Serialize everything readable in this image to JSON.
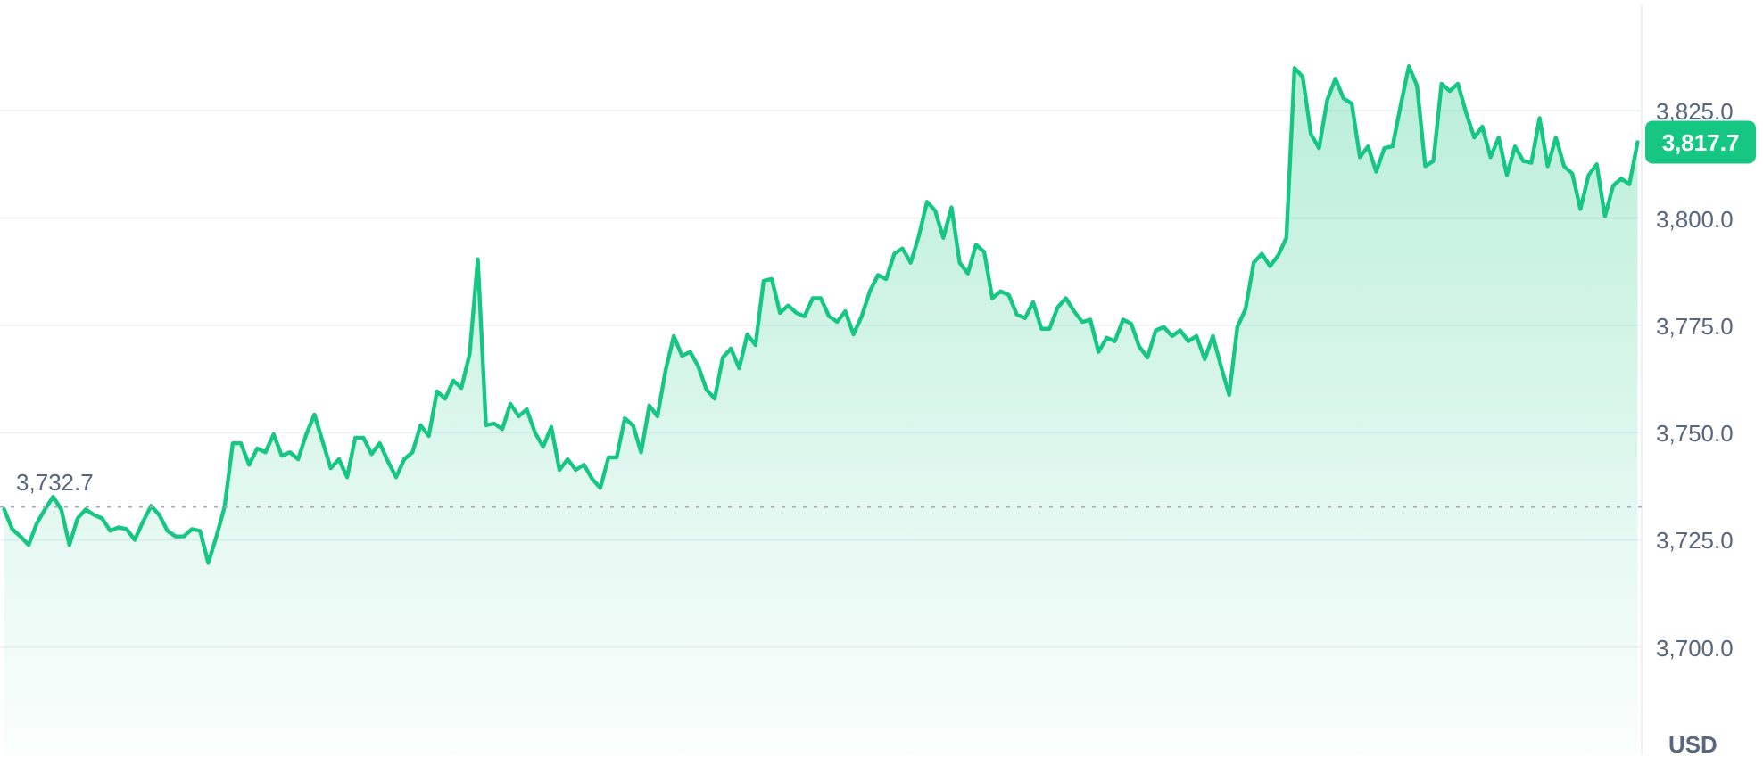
{
  "chart_data": {
    "type": "area",
    "categories": [
      null,
      null,
      null,
      null,
      null,
      null,
      null,
      null,
      null,
      null,
      null,
      null,
      null,
      null,
      null,
      null,
      null,
      null,
      null,
      null,
      null,
      null,
      null,
      null,
      null,
      null,
      null,
      null,
      null,
      null,
      null,
      null,
      null,
      null,
      null,
      null,
      null,
      null,
      null,
      null,
      null,
      null,
      null,
      null,
      null,
      null,
      null,
      null,
      null,
      null,
      null,
      null,
      null,
      null,
      null,
      null,
      null,
      null,
      null,
      null,
      null,
      null,
      null,
      null,
      null,
      null,
      null,
      null,
      null,
      null,
      null,
      null,
      null,
      null,
      null,
      null,
      null,
      null,
      null,
      null,
      null,
      null,
      null,
      null,
      null,
      null,
      null,
      null,
      null,
      null,
      null,
      null,
      null,
      null,
      null,
      null,
      null,
      null,
      null,
      null,
      null,
      null,
      null,
      null,
      null,
      null,
      null,
      null,
      null,
      null,
      null,
      null,
      null,
      null,
      null,
      null,
      null,
      null,
      null,
      null,
      null,
      null,
      null,
      null,
      null,
      null,
      null,
      null,
      null,
      null,
      null,
      null,
      null,
      null,
      null,
      null,
      null,
      null,
      null,
      null,
      null,
      null,
      null,
      null,
      null,
      null,
      null,
      null,
      null,
      null,
      null,
      null,
      null,
      null,
      null,
      null,
      null,
      null,
      null,
      null,
      null,
      null,
      null,
      null,
      null,
      null,
      null,
      null,
      null,
      null,
      null,
      null,
      null,
      null,
      null,
      null,
      null,
      null,
      null,
      null,
      null,
      null,
      null,
      null,
      null,
      null,
      null,
      null,
      null,
      null,
      null,
      null,
      null,
      null,
      null,
      null,
      null,
      null,
      null,
      null,
      null
    ],
    "series": [
      {
        "color": "#16c784",
        "values": [
          3732.1,
          3727.5,
          3725.8,
          3723.8,
          3728.8,
          3732.1,
          3735,
          3732.1,
          3723.8,
          3730,
          3732.1,
          3730.8,
          3730,
          3727.1,
          3727.9,
          3727.5,
          3725,
          3729.2,
          3732.9,
          3730.8,
          3727.1,
          3725.8,
          3725.8,
          3727.5,
          3727.1,
          3719.6,
          3725.8,
          3732.7,
          3747.5,
          3747.5,
          3742.5,
          3746.3,
          3745.4,
          3749.6,
          3744.6,
          3745.4,
          3743.8,
          3749.6,
          3754.2,
          3747.9,
          3741.7,
          3743.8,
          3739.6,
          3748.8,
          3748.8,
          3745,
          3747.5,
          3743.3,
          3739.6,
          3743.8,
          3745.4,
          3751.7,
          3749.2,
          3759.6,
          3757.9,
          3762.1,
          3760.4,
          3768.3,
          3790.4,
          3751.7,
          3752.1,
          3750.8,
          3756.7,
          3753.8,
          3755.4,
          3750,
          3746.7,
          3751.3,
          3741.3,
          3743.8,
          3741.3,
          3742.5,
          3739.2,
          3737.1,
          3744.2,
          3744.2,
          3753.3,
          3751.7,
          3745.4,
          3756.3,
          3753.8,
          3764.6,
          3772.5,
          3767.9,
          3768.8,
          3765.4,
          3760,
          3757.9,
          3767.5,
          3769.6,
          3765,
          3772.9,
          3770.4,
          3785.4,
          3785.8,
          3777.9,
          3779.6,
          3777.9,
          3777.1,
          3781.3,
          3781.3,
          3777.1,
          3775.8,
          3778.3,
          3772.9,
          3777.1,
          3782.9,
          3786.7,
          3785.8,
          3791.7,
          3792.9,
          3789.6,
          3795.8,
          3803.8,
          3801.7,
          3795.4,
          3802.5,
          3789.6,
          3787.1,
          3793.8,
          3792.1,
          3781.3,
          3782.9,
          3782.1,
          3777.5,
          3776.7,
          3780.4,
          3774.2,
          3774.2,
          3779.2,
          3781.3,
          3778.3,
          3775.8,
          3776.3,
          3768.8,
          3772.1,
          3771.3,
          3776.3,
          3775.4,
          3770,
          3767.5,
          3773.8,
          3774.6,
          3772.5,
          3773.8,
          3771.3,
          3772.5,
          3767.1,
          3772.5,
          3765.4,
          3758.8,
          3774.6,
          3778.8,
          3789.6,
          3791.7,
          3788.8,
          3791.3,
          3795.4,
          3835,
          3832.9,
          3819.6,
          3816.3,
          3827.5,
          3832.5,
          3827.9,
          3826.7,
          3814.2,
          3816.7,
          3810.8,
          3816.3,
          3816.7,
          3826.3,
          3835.4,
          3830.8,
          3812.1,
          3813.3,
          3831.3,
          3829.6,
          3831.3,
          3824.6,
          3818.8,
          3821.3,
          3814.2,
          3818.8,
          3810,
          3816.7,
          3813.3,
          3812.9,
          3823.3,
          3812.1,
          3818.8,
          3812.1,
          3810.4,
          3802.1,
          3810,
          3812.5,
          3800.4,
          3807.5,
          3809.2,
          3807.9,
          3817.7
        ]
      }
    ],
    "ylabel": "USD",
    "ylim": [
      3675,
      3850
    ],
    "yticks": [
      {
        "value": 3700,
        "label": "3,700.0"
      },
      {
        "value": 3725,
        "label": "3,725.0"
      },
      {
        "value": 3750,
        "label": "3,750.0"
      },
      {
        "value": 3775,
        "label": "3,775.0"
      },
      {
        "value": 3800,
        "label": "3,800.0"
      },
      {
        "value": 3825,
        "label": "3,825.0"
      }
    ],
    "ref_lines": [
      {
        "axis": "y",
        "value": 3732.7,
        "label": "3,732.7",
        "color": "#a8adb5",
        "line_style": "dotted"
      }
    ],
    "annotations": [
      "3,817.7"
    ],
    "grid": "y",
    "tick_labels": "y",
    "line_style": "solid",
    "marker": "none"
  }
}
